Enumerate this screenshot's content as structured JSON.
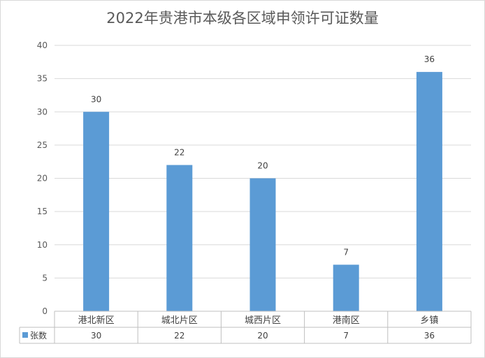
{
  "chart_data": {
    "type": "bar",
    "title": "2022年贵港市本级各区域申领许可证数量",
    "categories": [
      "港北新区",
      "城北片区",
      "城西片区",
      "港南区",
      "乡镇"
    ],
    "series": [
      {
        "name": "张数",
        "values": [
          30,
          22,
          20,
          7,
          36
        ],
        "color": "#5b9bd5"
      }
    ],
    "ylim": [
      0,
      40
    ],
    "yticks": [
      0,
      5,
      10,
      15,
      20,
      25,
      30,
      35,
      40
    ],
    "grid": true,
    "data_labels": true,
    "data_table": true,
    "legend": "data-table"
  }
}
